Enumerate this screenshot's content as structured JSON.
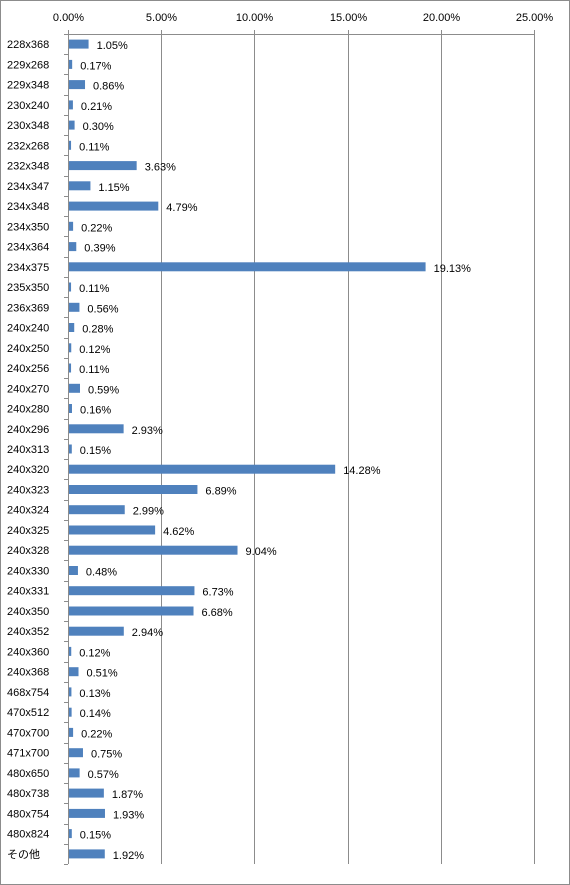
{
  "chart_data": {
    "type": "bar",
    "orientation": "horizontal",
    "title": "",
    "xlabel": "",
    "ylabel": "",
    "xlim": [
      0,
      25
    ],
    "x_ticks": [
      0,
      5,
      10,
      15,
      20,
      25
    ],
    "x_tick_labels": [
      "0.00%",
      "5.00%",
      "10.00%",
      "15.00%",
      "20.00%",
      "25.00%"
    ],
    "x_axis_position": "top",
    "grid": true,
    "legend": "none",
    "bar_color": "#4f81bd",
    "gridline_color": "#8c8c8c",
    "categories": [
      "228x368",
      "229x268",
      "229x348",
      "230x240",
      "230x348",
      "232x268",
      "232x348",
      "234x347",
      "234x348",
      "234x350",
      "234x364",
      "234x375",
      "235x350",
      "236x369",
      "240x240",
      "240x250",
      "240x256",
      "240x270",
      "240x280",
      "240x296",
      "240x313",
      "240x320",
      "240x323",
      "240x324",
      "240x325",
      "240x328",
      "240x330",
      "240x331",
      "240x350",
      "240x352",
      "240x360",
      "240x368",
      "468x754",
      "470x512",
      "470x700",
      "471x700",
      "480x650",
      "480x738",
      "480x754",
      "480x824",
      "その他"
    ],
    "values": [
      1.05,
      0.17,
      0.86,
      0.21,
      0.3,
      0.11,
      3.63,
      1.15,
      4.79,
      0.22,
      0.39,
      19.13,
      0.11,
      0.56,
      0.28,
      0.12,
      0.11,
      0.59,
      0.16,
      2.93,
      0.15,
      14.28,
      6.89,
      2.99,
      4.62,
      9.04,
      0.48,
      6.73,
      6.68,
      2.94,
      0.12,
      0.51,
      0.13,
      0.14,
      0.22,
      0.75,
      0.57,
      1.87,
      1.93,
      0.15,
      1.92
    ],
    "value_labels": [
      "1.05%",
      "0.17%",
      "0.86%",
      "0.21%",
      "0.30%",
      "0.11%",
      "3.63%",
      "1.15%",
      "4.79%",
      "0.22%",
      "0.39%",
      "19.13%",
      "0.11%",
      "0.56%",
      "0.28%",
      "0.12%",
      "0.11%",
      "0.59%",
      "0.16%",
      "2.93%",
      "0.15%",
      "14.28%",
      "6.89%",
      "2.99%",
      "4.62%",
      "9.04%",
      "0.48%",
      "6.73%",
      "6.68%",
      "2.94%",
      "0.12%",
      "0.51%",
      "0.13%",
      "0.14%",
      "0.22%",
      "0.75%",
      "0.57%",
      "1.87%",
      "1.93%",
      "0.15%",
      "1.92%"
    ]
  }
}
